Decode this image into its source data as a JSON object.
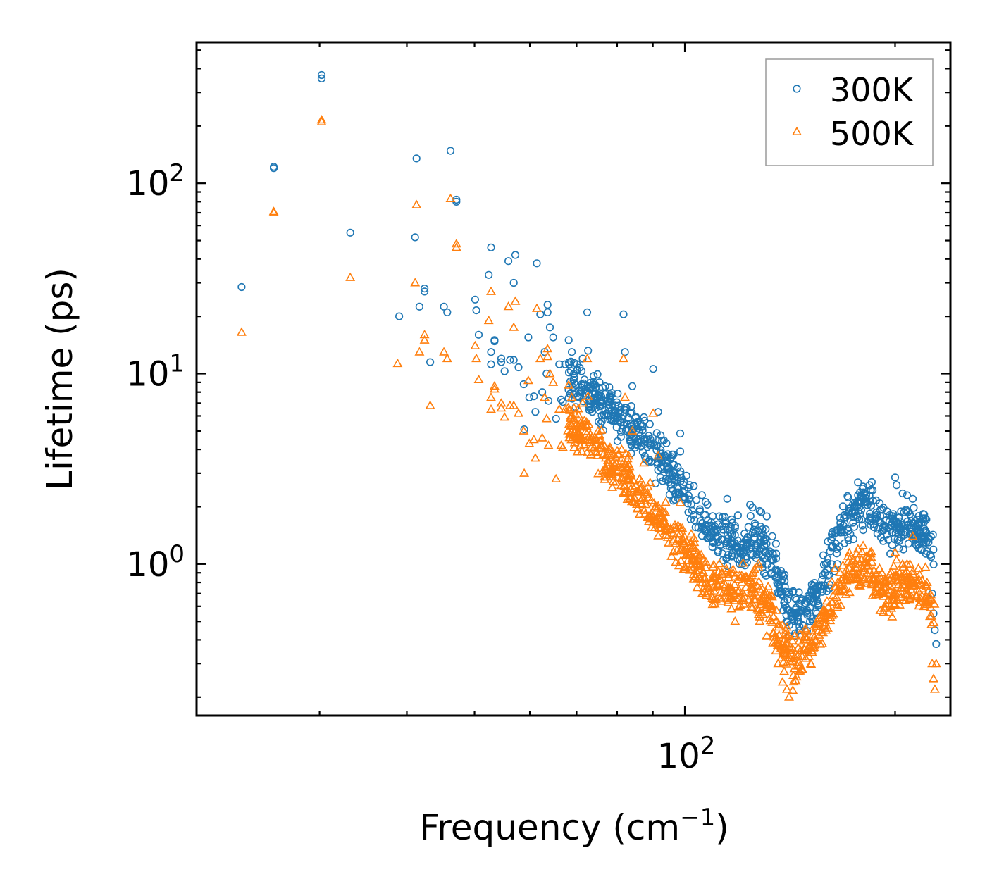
{
  "chart_data": {
    "type": "scatter",
    "title": "",
    "xlabel": "Frequency (cm",
    "xlabel_sup": "−1",
    "xlabel_tail": ")",
    "ylabel": "Lifetime (ps)",
    "xscale": "log",
    "yscale": "log",
    "xlim": [
      20,
      240
    ],
    "ylim": [
      0.16,
      550
    ],
    "x_ticks": [
      {
        "value": 100,
        "base": "10",
        "exp": "2"
      }
    ],
    "y_ticks": [
      {
        "value": 1,
        "base": "10",
        "exp": "0"
      },
      {
        "value": 10,
        "base": "10",
        "exp": "1"
      },
      {
        "value": 100,
        "base": "10",
        "exp": "2"
      }
    ],
    "legend_position": "top-right",
    "series": [
      {
        "name": "300K",
        "color": "#1f77b4",
        "marker": "circle-open",
        "points": [
          [
            23.2,
            28.5
          ],
          [
            25.8,
            122
          ],
          [
            25.8,
            120
          ],
          [
            30.2,
            370
          ],
          [
            30.2,
            355
          ],
          [
            33.2,
            55
          ],
          [
            39,
            20
          ],
          [
            41.1,
            52
          ],
          [
            41.3,
            135
          ],
          [
            41.7,
            22.5
          ],
          [
            42.4,
            28
          ],
          [
            42.4,
            27
          ],
          [
            43.2,
            11.5
          ],
          [
            45.2,
            22.5
          ],
          [
            45.7,
            21
          ],
          [
            46.2,
            148
          ],
          [
            47.1,
            82
          ],
          [
            47.1,
            80
          ],
          [
            50.1,
            24.5
          ],
          [
            50.3,
            21.5
          ],
          [
            50.7,
            16
          ],
          [
            52.4,
            33
          ],
          [
            52.8,
            46
          ],
          [
            52.8,
            13
          ],
          [
            52.8,
            11.2
          ],
          [
            53.4,
            15
          ],
          [
            53.4,
            14.8
          ],
          [
            54.6,
            12
          ],
          [
            54.6,
            11.5
          ],
          [
            55.2,
            10.3
          ],
          [
            55.9,
            39
          ],
          [
            56.2,
            11.8
          ],
          [
            56.9,
            30
          ],
          [
            56.9,
            11.8
          ],
          [
            57.2,
            42
          ],
          [
            57.8,
            10.8
          ],
          [
            58.8,
            8.8
          ],
          [
            58.9,
            5.1
          ],
          [
            59.7,
            15.5
          ],
          [
            59.9,
            7.5
          ],
          [
            60.8,
            7.6
          ],
          [
            61.1,
            6.3
          ],
          [
            61.4,
            38
          ],
          [
            62.1,
            20.5
          ],
          [
            62.5,
            8
          ],
          [
            63,
            13
          ],
          [
            63.4,
            10
          ],
          [
            63.6,
            23
          ],
          [
            63.6,
            21
          ],
          [
            63.8,
            7.2
          ],
          [
            64.1,
            17.5
          ],
          [
            64.8,
            15.5
          ],
          [
            65.4,
            5.8
          ],
          [
            66.1,
            11.2
          ],
          [
            66.5,
            7.3
          ],
          [
            66.9,
            7.1
          ],
          [
            67.4,
            11.2
          ],
          [
            68.2,
            15
          ],
          [
            68.3,
            11.2
          ],
          [
            68.9,
            13
          ],
          [
            69.4,
            11.4
          ],
          [
            69.4,
            10
          ],
          [
            71.4,
            12
          ],
          [
            72.5,
            21
          ],
          [
            72.7,
            13.2
          ],
          [
            81.7,
            20.5
          ],
          [
            82.1,
            13
          ],
          [
            84.1,
            8.6
          ],
          [
            87.4,
            5.9
          ],
          [
            90.1,
            10.6
          ],
          [
            91.6,
            6.3
          ],
          [
            98.5,
            4.85
          ],
          [
            98.5,
            3.9
          ],
          [
            115,
            2.2
          ],
          [
            117,
            1.65
          ],
          [
            118,
            1.55
          ],
          [
            124,
            2.05
          ],
          [
            125,
            1.98
          ],
          [
            128,
            1.9
          ],
          [
            131,
            1.78
          ],
          [
            135,
            0.85
          ],
          [
            136,
            0.78
          ],
          [
            140,
            0.5
          ],
          [
            141,
            0.42
          ],
          [
            143,
            0.72
          ],
          [
            149,
            0.62
          ],
          [
            152,
            0.78
          ],
          [
            161,
            0.88
          ],
          [
            165,
            1.2
          ],
          [
            172,
            1.9
          ],
          [
            177,
            2.3
          ],
          [
            180,
            2.55
          ],
          [
            182,
            2.1
          ],
          [
            190,
            1.65
          ],
          [
            200,
            2.85
          ],
          [
            201,
            2.6
          ],
          [
            205,
            2.35
          ],
          [
            208,
            2.3
          ],
          [
            212,
            2.2
          ],
          [
            216,
            1.65
          ],
          [
            220,
            1.4
          ],
          [
            226,
            0.7
          ],
          [
            227,
            0.55
          ],
          [
            228,
            0.45
          ],
          [
            229,
            0.38
          ]
        ],
        "band": [
          [
            68,
            9.5
          ],
          [
            72,
            8.2
          ],
          [
            76,
            7
          ],
          [
            80,
            6
          ],
          [
            84,
            5.1
          ],
          [
            88,
            4.2
          ],
          [
            92,
            3.5
          ],
          [
            96,
            2.9
          ],
          [
            100,
            2.4
          ],
          [
            104,
            1.85
          ],
          [
            108,
            1.55
          ],
          [
            112,
            1.4
          ],
          [
            116,
            1.3
          ],
          [
            120,
            1.25
          ],
          [
            124,
            1.28
          ],
          [
            128,
            1.33
          ],
          [
            132,
            1.2
          ],
          [
            136,
            0.85
          ],
          [
            140,
            0.62
          ],
          [
            144,
            0.52
          ],
          [
            148,
            0.55
          ],
          [
            152,
            0.65
          ],
          [
            156,
            0.75
          ],
          [
            160,
            0.95
          ],
          [
            164,
            1.25
          ],
          [
            168,
            1.55
          ],
          [
            172,
            1.8
          ],
          [
            176,
            1.95
          ],
          [
            180,
            2.0
          ],
          [
            184,
            2.0
          ],
          [
            188,
            1.85
          ],
          [
            192,
            1.6
          ],
          [
            196,
            1.5
          ],
          [
            200,
            1.6
          ],
          [
            204,
            1.65
          ],
          [
            208,
            1.6
          ],
          [
            212,
            1.5
          ],
          [
            216,
            1.45
          ],
          [
            220,
            1.4
          ],
          [
            224,
            1.3
          ],
          [
            228,
            1.1
          ]
        ]
      },
      {
        "name": "500K",
        "color": "#ff7f0e",
        "marker": "triangle-open",
        "points": [
          [
            23.2,
            16.5
          ],
          [
            25.8,
            71
          ],
          [
            25.8,
            70
          ],
          [
            30.2,
            215
          ],
          [
            30.2,
            210
          ],
          [
            33.2,
            32
          ],
          [
            38.8,
            11.3
          ],
          [
            41.1,
            30
          ],
          [
            41.3,
            77
          ],
          [
            41.7,
            13
          ],
          [
            42.4,
            16
          ],
          [
            42.4,
            15
          ],
          [
            43.2,
            6.8
          ],
          [
            45.2,
            13
          ],
          [
            45.7,
            12
          ],
          [
            46.2,
            83
          ],
          [
            47.1,
            48
          ],
          [
            47.1,
            46
          ],
          [
            50.1,
            14
          ],
          [
            50.3,
            12
          ],
          [
            50.7,
            9.3
          ],
          [
            52.4,
            19
          ],
          [
            52.8,
            27
          ],
          [
            52.8,
            7.5
          ],
          [
            52.8,
            6.5
          ],
          [
            53.4,
            8.6
          ],
          [
            53.4,
            8.3
          ],
          [
            54.6,
            7
          ],
          [
            54.6,
            6.6
          ],
          [
            55.2,
            5.9
          ],
          [
            55.9,
            22.5
          ],
          [
            56.2,
            6.8
          ],
          [
            56.9,
            17.5
          ],
          [
            56.9,
            6.8
          ],
          [
            57.2,
            24
          ],
          [
            57.8,
            6.2
          ],
          [
            58.8,
            5
          ],
          [
            58.9,
            3
          ],
          [
            59.7,
            9.2
          ],
          [
            59.9,
            4.3
          ],
          [
            60.8,
            4.5
          ],
          [
            61.1,
            3.6
          ],
          [
            61.4,
            22
          ],
          [
            62.1,
            12
          ],
          [
            62.5,
            4.6
          ],
          [
            63,
            7.5
          ],
          [
            63.4,
            5.8
          ],
          [
            63.6,
            13.5
          ],
          [
            63.6,
            12.3
          ],
          [
            63.8,
            4.2
          ],
          [
            64.1,
            10
          ],
          [
            64.8,
            9
          ],
          [
            65.4,
            2.8
          ],
          [
            66.1,
            6.5
          ],
          [
            66.5,
            4.2
          ],
          [
            66.9,
            4.1
          ],
          [
            67.4,
            6.5
          ],
          [
            68.2,
            8.7
          ],
          [
            68.3,
            6.5
          ],
          [
            68.9,
            7.5
          ],
          [
            69.4,
            6.6
          ],
          [
            69.4,
            5.8
          ],
          [
            71.4,
            7
          ],
          [
            72.5,
            12
          ],
          [
            72.7,
            7.6
          ],
          [
            81.7,
            12
          ],
          [
            82.1,
            7.5
          ],
          [
            84.1,
            5
          ],
          [
            87.4,
            3.4
          ],
          [
            90.1,
            6.2
          ],
          [
            91.6,
            3.7
          ],
          [
            98.5,
            2.1
          ],
          [
            98.5,
            1.55
          ],
          [
            115,
            0.92
          ],
          [
            117,
            0.66
          ],
          [
            118,
            0.5
          ],
          [
            124,
            0.85
          ],
          [
            125,
            0.75
          ],
          [
            128,
            0.5
          ],
          [
            131,
            0.42
          ],
          [
            135,
            0.35
          ],
          [
            136,
            0.3
          ],
          [
            138,
            0.24
          ],
          [
            140,
            0.22
          ],
          [
            141,
            0.2
          ],
          [
            143,
            0.26
          ],
          [
            147,
            0.28
          ],
          [
            149,
            0.32
          ],
          [
            152,
            0.45
          ],
          [
            161,
            0.55
          ],
          [
            165,
            0.72
          ],
          [
            172,
            0.95
          ],
          [
            177,
            1.2
          ],
          [
            180,
            1.25
          ],
          [
            182,
            1.1
          ],
          [
            190,
            0.95
          ],
          [
            200,
            1.15
          ],
          [
            201,
            1.05
          ],
          [
            205,
            1.0
          ],
          [
            208,
            1.0
          ],
          [
            212,
            1.4
          ],
          [
            216,
            0.95
          ],
          [
            220,
            0.6
          ],
          [
            226,
            0.3
          ],
          [
            227,
            0.25
          ],
          [
            228,
            0.22
          ],
          [
            229,
            0.3
          ]
        ],
        "band": [
          [
            68,
            5.6
          ],
          [
            72,
            4.7
          ],
          [
            76,
            3.9
          ],
          [
            80,
            3.2
          ],
          [
            84,
            2.6
          ],
          [
            88,
            2.1
          ],
          [
            92,
            1.75
          ],
          [
            96,
            1.45
          ],
          [
            100,
            1.2
          ],
          [
            104,
            0.95
          ],
          [
            108,
            0.8
          ],
          [
            112,
            0.75
          ],
          [
            116,
            0.72
          ],
          [
            120,
            0.72
          ],
          [
            124,
            0.74
          ],
          [
            128,
            0.7
          ],
          [
            132,
            0.6
          ],
          [
            136,
            0.45
          ],
          [
            140,
            0.34
          ],
          [
            144,
            0.3
          ],
          [
            148,
            0.33
          ],
          [
            152,
            0.38
          ],
          [
            156,
            0.45
          ],
          [
            160,
            0.55
          ],
          [
            164,
            0.68
          ],
          [
            168,
            0.8
          ],
          [
            172,
            0.9
          ],
          [
            176,
            0.98
          ],
          [
            180,
            1.0
          ],
          [
            184,
            0.95
          ],
          [
            188,
            0.88
          ],
          [
            192,
            0.78
          ],
          [
            196,
            0.7
          ],
          [
            200,
            0.72
          ],
          [
            204,
            0.78
          ],
          [
            208,
            0.8
          ],
          [
            212,
            0.82
          ],
          [
            216,
            0.75
          ],
          [
            220,
            0.7
          ],
          [
            224,
            0.65
          ],
          [
            228,
            0.55
          ]
        ]
      }
    ]
  }
}
